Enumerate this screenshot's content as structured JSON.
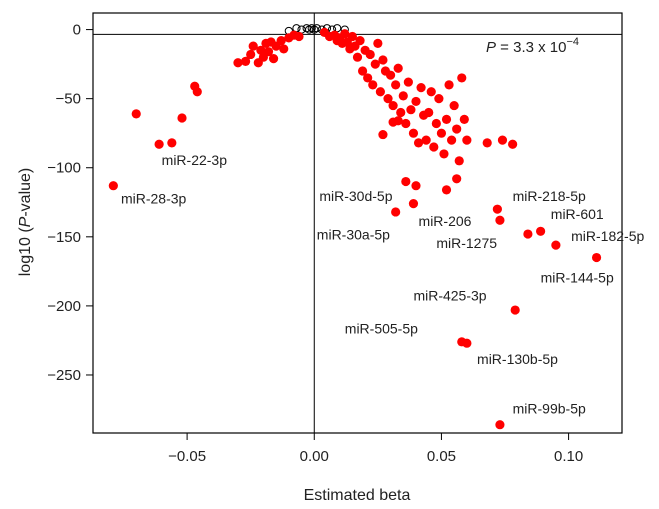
{
  "chart_data": {
    "type": "scatter",
    "xlabel": "Estimated beta",
    "ylabel_prefix": "log10 (",
    "ylabel_italic": "P",
    "ylabel_suffix": "-value)",
    "annotation_prefix": " = 3.3 x 10",
    "annotation_italic": "P",
    "annotation_exponent": "−4",
    "xlim": [
      -0.087,
      0.121
    ],
    "ylim": [
      -292,
      12
    ],
    "x_ticks": [
      -0.05,
      0.0,
      0.05,
      0.1
    ],
    "x_tick_labels": [
      "−0.05",
      "0.00",
      "0.05",
      "0.10"
    ],
    "y_ticks": [
      0,
      -50,
      -100,
      -150,
      -200,
      -250
    ],
    "y_tick_labels": [
      "0",
      "−50",
      "−100",
      "−150",
      "−200",
      "−250"
    ],
    "threshold_y": -3.5,
    "reference_x": 0,
    "colors": {
      "significant": "#ff0000",
      "nonsignificant": "#000000"
    },
    "nonsignificant_points": [
      [
        -0.01,
        -1
      ],
      [
        -0.007,
        1
      ],
      [
        -0.005,
        0
      ],
      [
        -0.003,
        1
      ],
      [
        -0.002,
        0
      ],
      [
        -0.001,
        1
      ],
      [
        0.0,
        0
      ],
      [
        0.001,
        1
      ],
      [
        0.003,
        0
      ],
      [
        0.005,
        1
      ],
      [
        0.007,
        0
      ],
      [
        0.009,
        1
      ],
      [
        0.012,
        0
      ]
    ],
    "significant_points": [
      [
        -0.079,
        -113
      ],
      [
        -0.061,
        -83
      ],
      [
        -0.056,
        -82
      ],
      [
        -0.052,
        -64
      ],
      [
        -0.07,
        -61
      ],
      [
        -0.047,
        -41
      ],
      [
        -0.046,
        -45
      ],
      [
        -0.03,
        -24
      ],
      [
        -0.027,
        -23
      ],
      [
        -0.025,
        -18
      ],
      [
        -0.024,
        -12
      ],
      [
        -0.022,
        -24
      ],
      [
        -0.021,
        -15
      ],
      [
        -0.02,
        -20
      ],
      [
        -0.019,
        -10
      ],
      [
        -0.018,
        -16
      ],
      [
        -0.017,
        -9
      ],
      [
        -0.016,
        -21
      ],
      [
        -0.015,
        -12
      ],
      [
        -0.013,
        -8
      ],
      [
        -0.012,
        -14
      ],
      [
        -0.01,
        -6
      ],
      [
        -0.008,
        -4
      ],
      [
        -0.006,
        -5
      ],
      [
        0.004,
        -2
      ],
      [
        0.006,
        -5
      ],
      [
        0.008,
        -4
      ],
      [
        0.009,
        -8
      ],
      [
        0.01,
        -6
      ],
      [
        0.011,
        -10
      ],
      [
        0.012,
        -3
      ],
      [
        0.013,
        -9
      ],
      [
        0.014,
        -14
      ],
      [
        0.015,
        -5
      ],
      [
        0.016,
        -12
      ],
      [
        0.017,
        -20
      ],
      [
        0.018,
        -8
      ],
      [
        0.019,
        -30
      ],
      [
        0.02,
        -15
      ],
      [
        0.021,
        -35
      ],
      [
        0.022,
        -18
      ],
      [
        0.023,
        -40
      ],
      [
        0.024,
        -25
      ],
      [
        0.025,
        -10
      ],
      [
        0.026,
        -45
      ],
      [
        0.027,
        -22
      ],
      [
        0.028,
        -30
      ],
      [
        0.029,
        -50
      ],
      [
        0.03,
        -33
      ],
      [
        0.031,
        -55
      ],
      [
        0.032,
        -40
      ],
      [
        0.033,
        -28
      ],
      [
        0.034,
        -60
      ],
      [
        0.035,
        -48
      ],
      [
        0.036,
        -68
      ],
      [
        0.037,
        -38
      ],
      [
        0.038,
        -58
      ],
      [
        0.039,
        -75
      ],
      [
        0.04,
        -52
      ],
      [
        0.041,
        -82
      ],
      [
        0.042,
        -42
      ],
      [
        0.043,
        -62
      ],
      [
        0.044,
        -80
      ],
      [
        0.045,
        -60
      ],
      [
        0.046,
        -45
      ],
      [
        0.047,
        -85
      ],
      [
        0.048,
        -68
      ],
      [
        0.049,
        -50
      ],
      [
        0.05,
        -75
      ],
      [
        0.051,
        -90
      ],
      [
        0.052,
        -65
      ],
      [
        0.053,
        -40
      ],
      [
        0.054,
        -80
      ],
      [
        0.055,
        -55
      ],
      [
        0.056,
        -72
      ],
      [
        0.057,
        -95
      ],
      [
        0.058,
        -35
      ],
      [
        0.059,
        -65
      ],
      [
        0.06,
        -80
      ],
      [
        0.068,
        -82
      ],
      [
        0.074,
        -80
      ],
      [
        0.078,
        -83
      ],
      [
        0.036,
        -110
      ],
      [
        0.04,
        -113
      ],
      [
        0.052,
        -116
      ],
      [
        0.056,
        -108
      ],
      [
        0.027,
        -76
      ],
      [
        0.031,
        -67
      ],
      [
        0.033,
        -66
      ],
      [
        0.032,
        -132
      ],
      [
        0.039,
        -126
      ],
      [
        0.072,
        -130
      ],
      [
        0.073,
        -138
      ],
      [
        0.084,
        -148
      ],
      [
        0.089,
        -146
      ],
      [
        0.095,
        -156
      ],
      [
        0.111,
        -165
      ],
      [
        0.079,
        -203
      ],
      [
        0.058,
        -226
      ],
      [
        0.06,
        -227
      ],
      [
        0.073,
        -286
      ]
    ],
    "point_labels": [
      {
        "text": "miR-22-3p",
        "x": -0.06,
        "y": -98
      },
      {
        "text": "miR-28-3p",
        "x": -0.076,
        "y": -126
      },
      {
        "text": "miR-30d-5p",
        "x": 0.002,
        "y": -124
      },
      {
        "text": "miR-30a-5p",
        "x": 0.001,
        "y": -152
      },
      {
        "text": "miR-206",
        "x": 0.041,
        "y": -142
      },
      {
        "text": "miR-218-5p",
        "x": 0.078,
        "y": -124
      },
      {
        "text": "miR-601",
        "x": 0.093,
        "y": -137
      },
      {
        "text": "miR-1275",
        "x": 0.048,
        "y": -158
      },
      {
        "text": "miR-182-5p",
        "x": 0.101,
        "y": -153
      },
      {
        "text": "miR-144-5p",
        "x": 0.089,
        "y": -183
      },
      {
        "text": "miR-425-3p",
        "x": 0.039,
        "y": -196
      },
      {
        "text": "miR-505-5p",
        "x": 0.012,
        "y": -220
      },
      {
        "text": "miR-130b-5p",
        "x": 0.064,
        "y": -242
      },
      {
        "text": "miR-99b-5p",
        "x": 0.078,
        "y": -278
      }
    ]
  }
}
